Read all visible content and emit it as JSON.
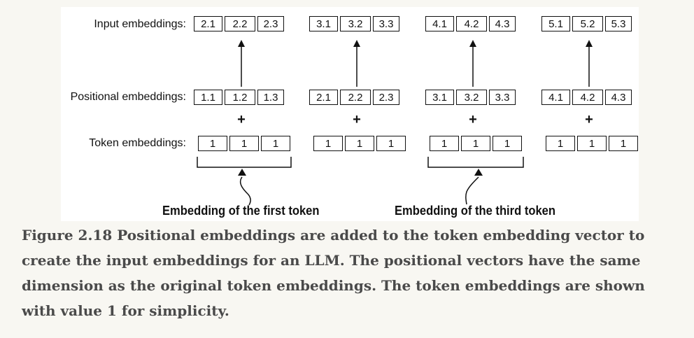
{
  "labels": {
    "input": "Input embeddings:",
    "positional": "Positional embeddings:",
    "token": "Token embeddings:"
  },
  "plus_sign": "+",
  "tokens": [
    {
      "input": [
        "2.1",
        "2.2",
        "2.3"
      ],
      "positional": [
        "1.1",
        "1.2",
        "1.3"
      ],
      "token": [
        "1",
        "1",
        "1"
      ]
    },
    {
      "input": [
        "3.1",
        "3.2",
        "3.3"
      ],
      "positional": [
        "2.1",
        "2.2",
        "2.3"
      ],
      "token": [
        "1",
        "1",
        "1"
      ]
    },
    {
      "input": [
        "4.1",
        "4.2",
        "4.3"
      ],
      "positional": [
        "3.1",
        "3.2",
        "3.3"
      ],
      "token": [
        "1",
        "1",
        "1"
      ]
    },
    {
      "input": [
        "5.1",
        "5.2",
        "5.3"
      ],
      "positional": [
        "4.1",
        "4.2",
        "4.3"
      ],
      "token": [
        "1",
        "1",
        "1"
      ]
    }
  ],
  "callouts": {
    "first": "Embedding of the first token",
    "third": "Embedding of the third token"
  },
  "caption": "Figure 2.18 Positional embeddings are added to the token embedding vector to create the input embeddings for an LLM. The positional vectors have the same dimension as the original token embeddings. The token embeddings are shown with value 1 for simplicity."
}
